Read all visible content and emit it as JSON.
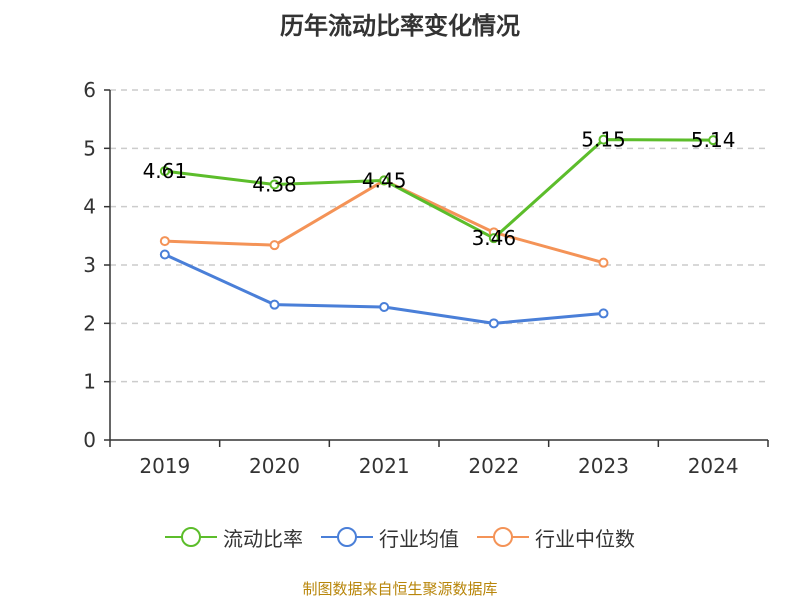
{
  "chart_data": {
    "type": "line",
    "title": "历年流动比率变化情况",
    "categories": [
      "2019",
      "2020",
      "2021",
      "2022",
      "2023",
      "2024"
    ],
    "y_ticks": [
      "0",
      "1",
      "2",
      "3",
      "4",
      "5",
      "6"
    ],
    "ylim": [
      0,
      6
    ],
    "grid": "horizontal-dashed",
    "legend_position": "bottom",
    "series": [
      {
        "name": "流动比率",
        "color": "#5cbd2b",
        "values": [
          4.61,
          4.38,
          4.45,
          3.46,
          5.15,
          5.14
        ],
        "labels": [
          "4.61",
          "4.38",
          "4.45",
          "3.46",
          "5.15",
          "5.14"
        ]
      },
      {
        "name": "行业均值",
        "color": "#4a7fd8",
        "values": [
          3.18,
          2.32,
          2.28,
          2.0,
          2.17,
          null
        ]
      },
      {
        "name": "行业中位数",
        "color": "#f49357",
        "values": [
          3.41,
          3.34,
          4.45,
          3.56,
          3.04,
          null
        ]
      }
    ]
  },
  "source": "制图数据来自恒生聚源数据库"
}
